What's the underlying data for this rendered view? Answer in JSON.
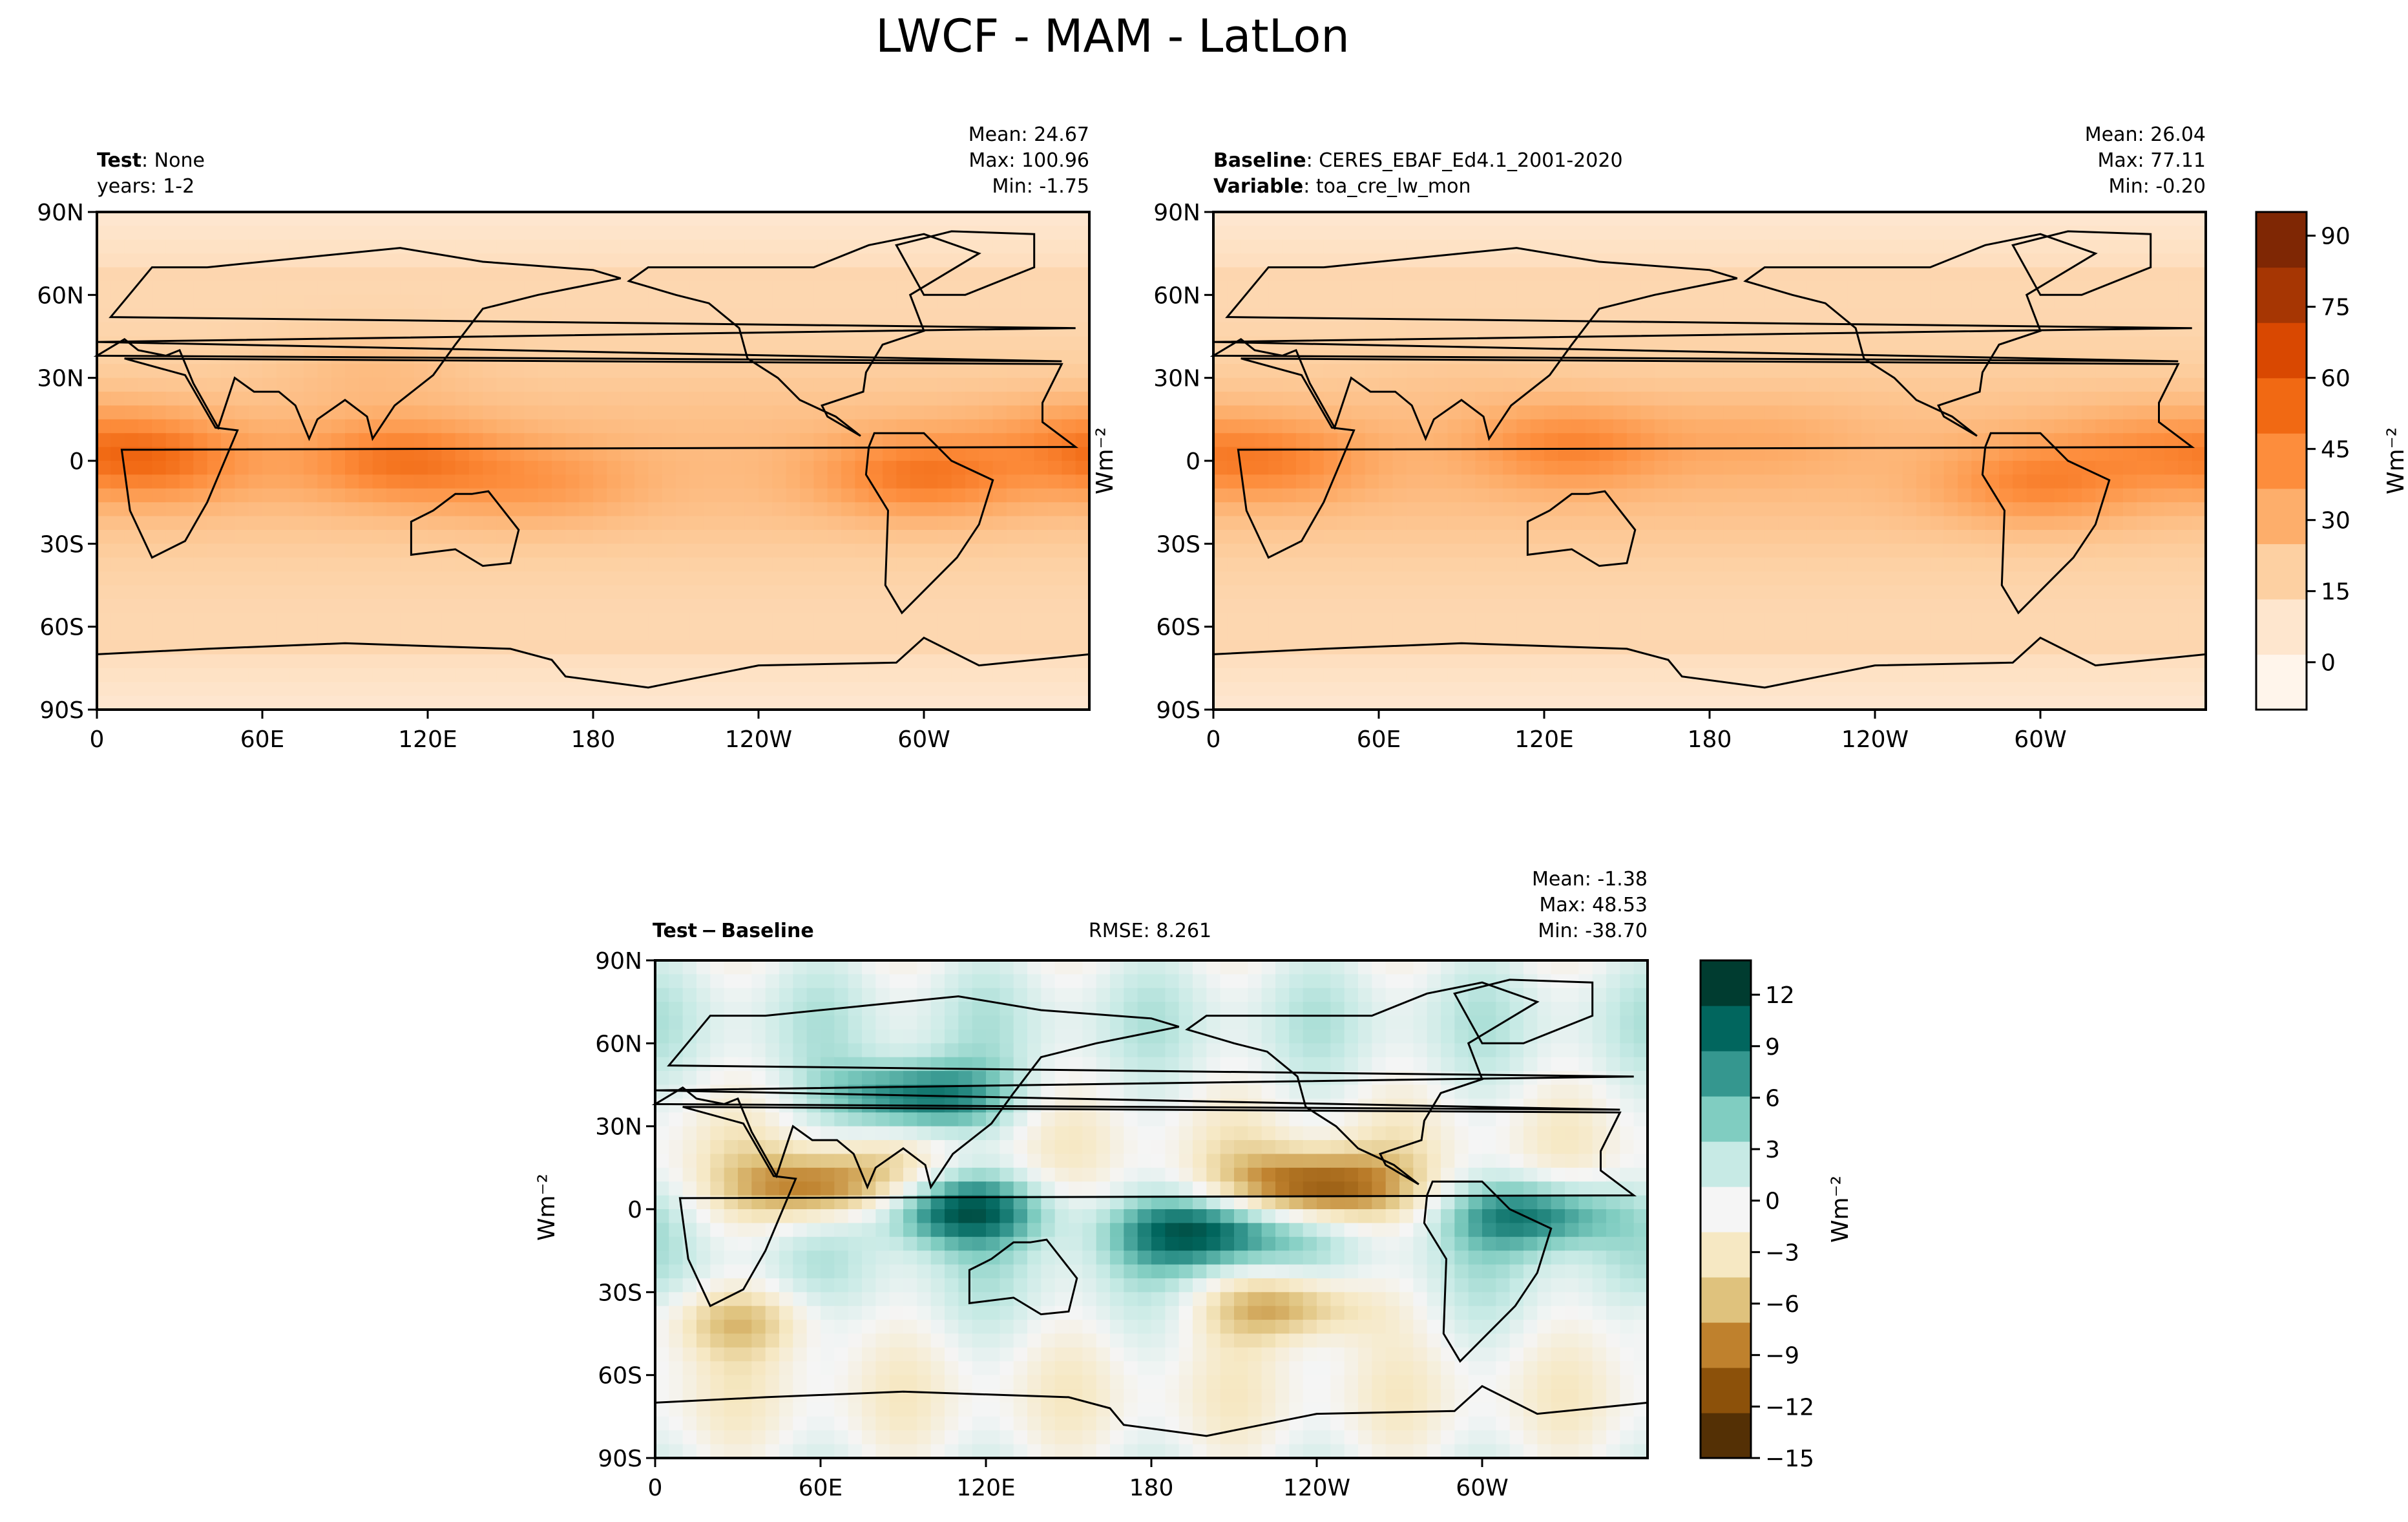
{
  "figure": {
    "title": "LWCF - MAM - LatLon"
  },
  "colors": {
    "orange_scale": [
      "#fff5eb",
      "#fee6ce",
      "#fdd0a2",
      "#fdae6b",
      "#fd8d3c",
      "#f16913",
      "#d94801",
      "#a63603",
      "#7f2704"
    ],
    "brbg_scale": [
      "#543005",
      "#8c510a",
      "#bf812d",
      "#dfc27d",
      "#f6e8c3",
      "#f5f5f5",
      "#c7eae5",
      "#80cdc1",
      "#35978f",
      "#01665e",
      "#003c30"
    ]
  },
  "chart_data": [
    {
      "type": "heatmap",
      "id": "test",
      "title_left_bold": "Test",
      "title_left_rest": ": None",
      "title_left_line2": "years: 1-2",
      "stats": [
        "Mean: 24.67",
        "Max: 100.96",
        "Min: -1.75"
      ],
      "xticks": [
        "0",
        "60E",
        "120E",
        "180",
        "120W",
        "60W"
      ],
      "yticks": [
        "90N",
        "60N",
        "30N",
        "0",
        "30S",
        "60S",
        "90S"
      ],
      "ylabel": "",
      "xlim": [
        0,
        360
      ],
      "ylim": [
        -90,
        90
      ],
      "value_range": [
        -10,
        95
      ],
      "features": [
        {
          "lon": 20,
          "lat": 0,
          "peak": 45
        },
        {
          "lon": 100,
          "lat": 35,
          "peak": 25
        },
        {
          "lon": 110,
          "lat": 0,
          "peak": 45
        },
        {
          "lon": 160,
          "lat": -8,
          "peak": 32
        },
        {
          "lon": 300,
          "lat": -5,
          "peak": 45
        },
        {
          "lon": 355,
          "lat": 8,
          "peak": 30
        }
      ]
    },
    {
      "type": "heatmap",
      "id": "baseline",
      "title_left_bold": "Baseline",
      "title_left_rest": ": CERES_EBAF_Ed4.1_2001-2020",
      "title_left_line2_bold": "Variable",
      "title_left_line2_rest": ": toa_cre_lw_mon",
      "stats": [
        "Mean: 26.04",
        "Max: 77.11",
        "Min: -0.20"
      ],
      "xticks": [
        "0",
        "60E",
        "120E",
        "180",
        "120W",
        "60W"
      ],
      "yticks": [
        "90N",
        "60N",
        "30N",
        "0",
        "30S",
        "60S",
        "90S"
      ],
      "ylabel": "Wm⁻²",
      "xlim": [
        0,
        360
      ],
      "ylim": [
        -90,
        90
      ],
      "value_range": [
        -10,
        95
      ],
      "features": [
        {
          "lon": 20,
          "lat": 0,
          "peak": 40
        },
        {
          "lon": 90,
          "lat": 30,
          "peak": 20
        },
        {
          "lon": 130,
          "lat": 5,
          "peak": 40
        },
        {
          "lon": 200,
          "lat": 7,
          "peak": 25
        },
        {
          "lon": 300,
          "lat": -8,
          "peak": 40
        },
        {
          "lon": 340,
          "lat": 5,
          "peak": 30
        }
      ]
    },
    {
      "type": "heatmap",
      "id": "diff",
      "title_left_bold": "Test − Baseline",
      "title_center": "RMSE: 8.261",
      "stats": [
        "Mean: -1.38",
        "Max: 48.53",
        "Min: -38.70"
      ],
      "xticks": [
        "0",
        "60E",
        "120E",
        "180",
        "120W",
        "60W"
      ],
      "yticks": [
        "90N",
        "60N",
        "30N",
        "0",
        "30S",
        "60S",
        "90S"
      ],
      "ylabel": "Wm⁻²",
      "xlim": [
        0,
        360
      ],
      "ylim": [
        -90,
        90
      ],
      "value_range": [
        -15,
        14
      ],
      "features": [
        {
          "lon": 95,
          "lat": 40,
          "peak": 12
        },
        {
          "lon": 110,
          "lat": 0,
          "peak": 12
        },
        {
          "lon": 200,
          "lat": -8,
          "peak": 12
        },
        {
          "lon": 320,
          "lat": -2,
          "peak": 10
        },
        {
          "lon": 240,
          "lat": 8,
          "peak": -12
        },
        {
          "lon": 60,
          "lat": 8,
          "peak": -10
        },
        {
          "lon": 230,
          "lat": -35,
          "peak": -9
        },
        {
          "lon": 30,
          "lat": -40,
          "peak": -6
        }
      ]
    }
  ],
  "colorbars": [
    {
      "id": "cbar_top",
      "ticks": [
        "90",
        "75",
        "60",
        "45",
        "30",
        "15",
        "0"
      ],
      "label": "Wm⁻²",
      "range": [
        -10,
        95
      ]
    },
    {
      "id": "cbar_diff",
      "ticks": [
        "12",
        "9",
        "6",
        "3",
        "0",
        "−3",
        "−6",
        "−9",
        "−12",
        "−15"
      ],
      "label": "Wm⁻²",
      "range": [
        -15,
        14
      ]
    }
  ]
}
